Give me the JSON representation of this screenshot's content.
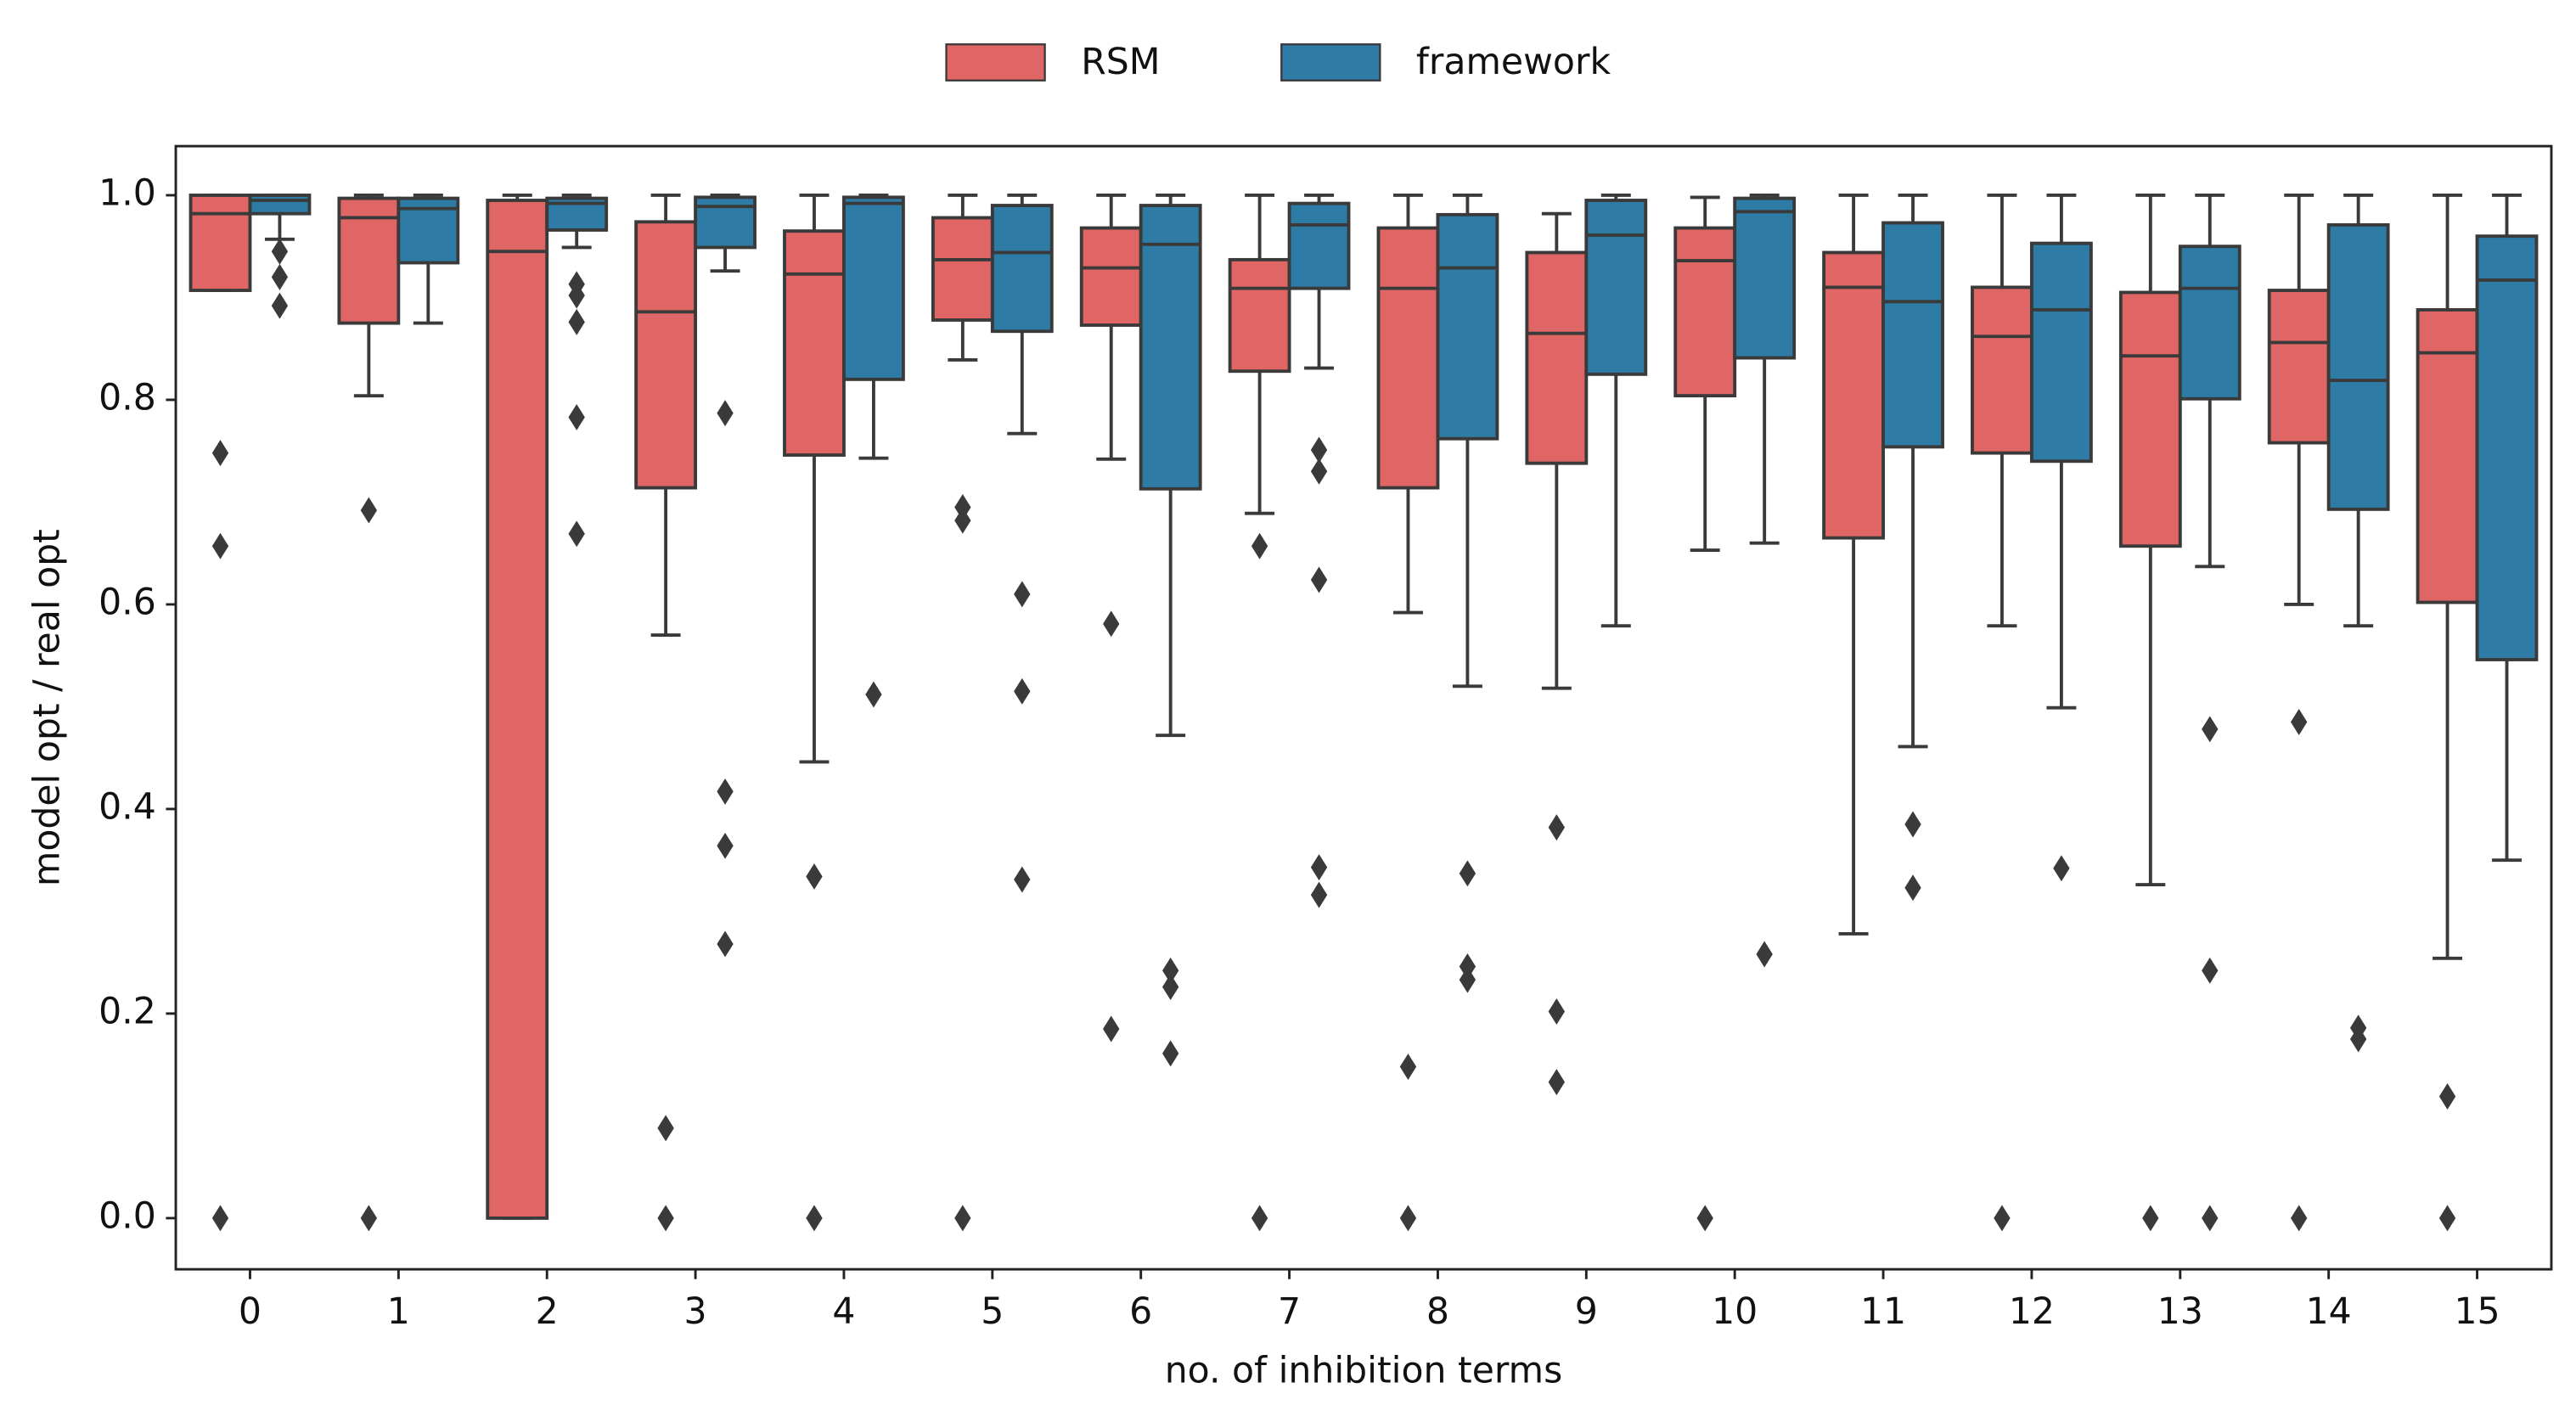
{
  "chart_data": {
    "type": "box",
    "x_label": "no. of inhibition terms",
    "y_label": "model opt / real opt",
    "categories": [
      "0",
      "1",
      "2",
      "3",
      "4",
      "5",
      "6",
      "7",
      "8",
      "9",
      "10",
      "11",
      "12",
      "13",
      "14",
      "15"
    ],
    "ylim": [
      -0.05,
      1.048
    ],
    "yticks": [
      {
        "value": 0,
        "label": "0.0"
      },
      0.2,
      0.4,
      0.6,
      0.8,
      {
        "value": 1,
        "label": "1.0"
      }
    ],
    "legend": "top-center",
    "series": [
      {
        "name": "RSM",
        "color": "#e06666",
        "whislo": [
          0.907,
          0.804,
          0,
          0.57,
          0.446,
          0.839,
          0.742,
          0.689,
          0.592,
          0.518,
          0.653,
          0.278,
          0.579,
          0.326,
          0.6,
          0.254
        ],
        "q1": [
          0.907,
          0.875,
          0,
          0.714,
          0.746,
          0.878,
          0.873,
          0.828,
          0.714,
          0.738,
          0.804,
          0.665,
          0.748,
          0.657,
          0.758,
          0.602
        ],
        "median": [
          0.982,
          0.978,
          0.945,
          0.886,
          0.923,
          0.937,
          0.929,
          0.909,
          0.909,
          0.865,
          0.936,
          0.91,
          0.862,
          0.843,
          0.856,
          0.846
        ],
        "q3": [
          1,
          0.997,
          0.995,
          0.974,
          0.965,
          0.978,
          0.968,
          0.937,
          0.968,
          0.944,
          0.968,
          0.944,
          0.91,
          0.905,
          0.907,
          0.888
        ],
        "whishi": [
          1,
          1,
          1,
          1,
          1,
          1,
          1,
          1,
          1,
          0.982,
          0.998,
          1,
          1,
          1,
          1,
          1
        ],
        "fliers": [
          [
            0.748,
            0.657,
            0
          ],
          [
            0.692,
            0
          ],
          [],
          [
            0.088,
            0
          ],
          [
            0.334,
            0
          ],
          [
            0.695,
            0.682,
            0
          ],
          [
            0.581,
            0.185
          ],
          [
            0.657,
            0
          ],
          [
            0.148,
            0
          ],
          [
            0.382,
            0.202,
            0.133
          ],
          [
            0
          ],
          [],
          [
            0
          ],
          [
            0
          ],
          [
            0.485,
            0
          ],
          [
            0.119,
            0
          ]
        ]
      },
      {
        "name": "framework",
        "color": "#2e7ca6",
        "whislo": [
          0.957,
          0.875,
          0.949,
          0.926,
          0.743,
          0.767,
          0.472,
          0.831,
          0.52,
          0.579,
          0.66,
          0.461,
          0.499,
          0.637,
          0.579,
          0.35
        ],
        "q1": [
          0.982,
          0.934,
          0.966,
          0.949,
          0.82,
          0.867,
          0.713,
          0.909,
          0.762,
          0.825,
          0.841,
          0.754,
          0.74,
          0.801,
          0.693,
          0.546
        ],
        "median": [
          0.995,
          0.987,
          0.992,
          0.989,
          0.992,
          0.944,
          0.952,
          0.971,
          0.929,
          0.961,
          0.984,
          0.896,
          0.888,
          0.909,
          0.819,
          0.917
        ],
        "q3": [
          1,
          0.997,
          0.997,
          0.998,
          0.998,
          0.99,
          0.99,
          0.992,
          0.981,
          0.995,
          0.997,
          0.973,
          0.953,
          0.95,
          0.971,
          0.96
        ],
        "whishi": [
          1,
          1,
          1,
          1,
          1,
          1,
          1,
          1,
          1,
          1,
          1,
          1,
          1,
          1,
          1,
          1
        ],
        "fliers": [
          [
            0.945,
            0.92,
            0.892
          ],
          [],
          [
            0.913,
            0.902,
            0.876,
            0.783,
            0.669
          ],
          [
            0.787,
            0.417,
            0.364,
            0.268
          ],
          [
            0.512
          ],
          [
            0.61,
            0.515,
            0.331
          ],
          [
            0.242,
            0.226,
            0.161
          ],
          [
            0.751,
            0.73,
            0.624,
            0.343,
            0.316
          ],
          [
            0.337,
            0.246,
            0.233
          ],
          [],
          [
            0.258
          ],
          [
            0.385,
            0.323
          ],
          [
            0.342
          ],
          [
            0.478,
            0.242,
            0
          ],
          [
            0.186,
            0.175
          ],
          []
        ]
      }
    ]
  }
}
